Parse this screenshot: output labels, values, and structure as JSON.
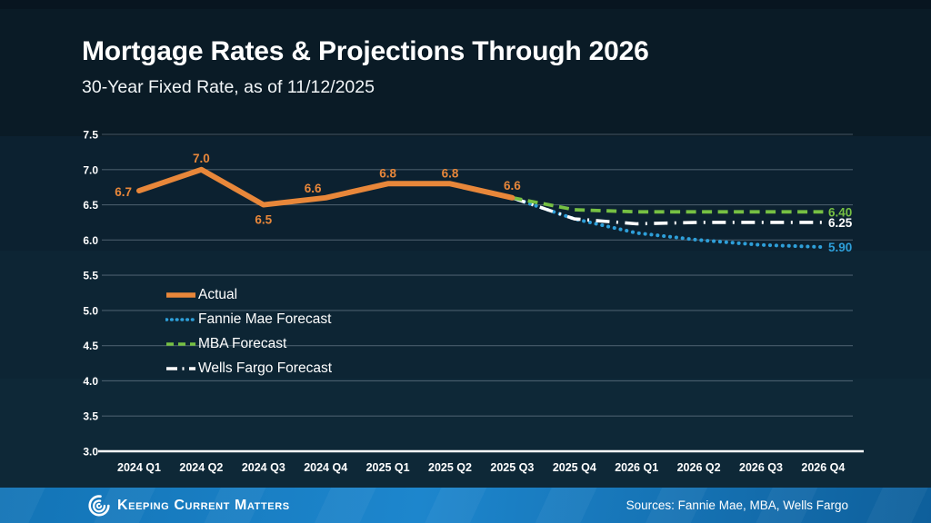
{
  "header": {
    "title": "Mortgage Rates & Projections Through 2026",
    "subtitle": "30-Year Fixed Rate, as of 11/12/2025"
  },
  "chart_data": {
    "type": "line",
    "title": "Mortgage Rates & Projections Through 2026",
    "subtitle": "30-Year Fixed Rate, as of 11/12/2025",
    "xlabel": "",
    "ylabel": "",
    "ylim": [
      3.0,
      7.5
    ],
    "ytick_step": 0.5,
    "grid": true,
    "legend_position": "center-left",
    "categories": [
      "2024 Q1",
      "2024 Q2",
      "2024 Q3",
      "2024 Q4",
      "2025 Q1",
      "2025 Q2",
      "2025 Q3",
      "2025 Q4",
      "2026 Q1",
      "2026 Q2",
      "2026 Q3",
      "2026 Q4"
    ],
    "series": [
      {
        "name": "Actual",
        "style": "solid",
        "color": "#E8873A",
        "values": [
          6.7,
          7.0,
          6.5,
          6.6,
          6.8,
          6.8,
          6.6,
          null,
          null,
          null,
          null,
          null
        ],
        "point_labels": [
          "6.7",
          "7.0",
          "6.5",
          "6.6",
          "6.8",
          "6.8",
          "6.6"
        ]
      },
      {
        "name": "Fannie Mae Forecast",
        "style": "dotted",
        "color": "#2E9FD9",
        "values": [
          null,
          null,
          null,
          null,
          null,
          null,
          6.6,
          6.3,
          6.1,
          6.0,
          5.93,
          5.9
        ],
        "end_label": "5.90"
      },
      {
        "name": "MBA Forecast",
        "style": "dashed",
        "color": "#76C043",
        "values": [
          null,
          null,
          null,
          null,
          null,
          null,
          6.6,
          6.43,
          6.4,
          6.4,
          6.4,
          6.4
        ],
        "end_label": "6.40"
      },
      {
        "name": "Wells Fargo Forecast",
        "style": "dashdot",
        "color": "#FFFFFF",
        "values": [
          null,
          null,
          null,
          null,
          null,
          null,
          6.6,
          6.3,
          6.23,
          6.25,
          6.25,
          6.25
        ],
        "end_label": "6.25"
      }
    ],
    "legend_order": [
      "Actual",
      "Fannie Mae Forecast",
      "MBA Forecast",
      "Wells Fargo Forecast"
    ]
  },
  "colors": {
    "background_dark_navy": "#0b2030",
    "axis_text": "#FFFFFF",
    "gridline": "#5a6a74",
    "footer_blue_left": "#1374b6",
    "footer_blue_mid": "#1d86cd",
    "footer_blue_right": "#0e5f9b"
  },
  "footer": {
    "logo_icon": "kcm-spiral-logo",
    "brand": "Keeping Current Matters",
    "sources": "Sources: Fannie Mae, MBA, Wells Fargo"
  }
}
